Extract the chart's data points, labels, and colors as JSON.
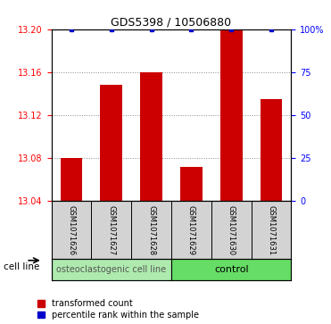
{
  "title": "GDS5398 / 10506880",
  "samples": [
    "GSM1071626",
    "GSM1071627",
    "GSM1071628",
    "GSM1071629",
    "GSM1071630",
    "GSM1071631"
  ],
  "red_values": [
    13.08,
    13.148,
    13.16,
    13.072,
    13.2,
    13.135
  ],
  "blue_values": [
    100,
    100,
    100,
    100,
    100,
    100
  ],
  "ylim_left": [
    13.04,
    13.2
  ],
  "ylim_right": [
    0,
    100
  ],
  "yticks_left": [
    13.04,
    13.08,
    13.12,
    13.16,
    13.2
  ],
  "yticks_right": [
    0,
    25,
    50,
    75,
    100
  ],
  "ytick_labels_right": [
    "0",
    "25",
    "50",
    "75",
    "100%"
  ],
  "group1_label": "osteoclastogenic cell line",
  "group2_label": "control",
  "group1_color": "#aeeaae",
  "group2_color": "#66dd66",
  "bar_color": "#cc0000",
  "dot_color": "#0000cc",
  "bar_width": 0.55,
  "cell_line_label": "cell line",
  "legend_red": "transformed count",
  "legend_blue": "percentile rank within the sample",
  "bg_color": "#ffffff",
  "plot_bg": "#ffffff",
  "label_box_color": "#d3d3d3",
  "grid_color": "#888888",
  "title_fontsize": 9,
  "tick_fontsize": 7,
  "sample_fontsize": 6,
  "legend_fontsize": 7,
  "group_fontsize": 7
}
